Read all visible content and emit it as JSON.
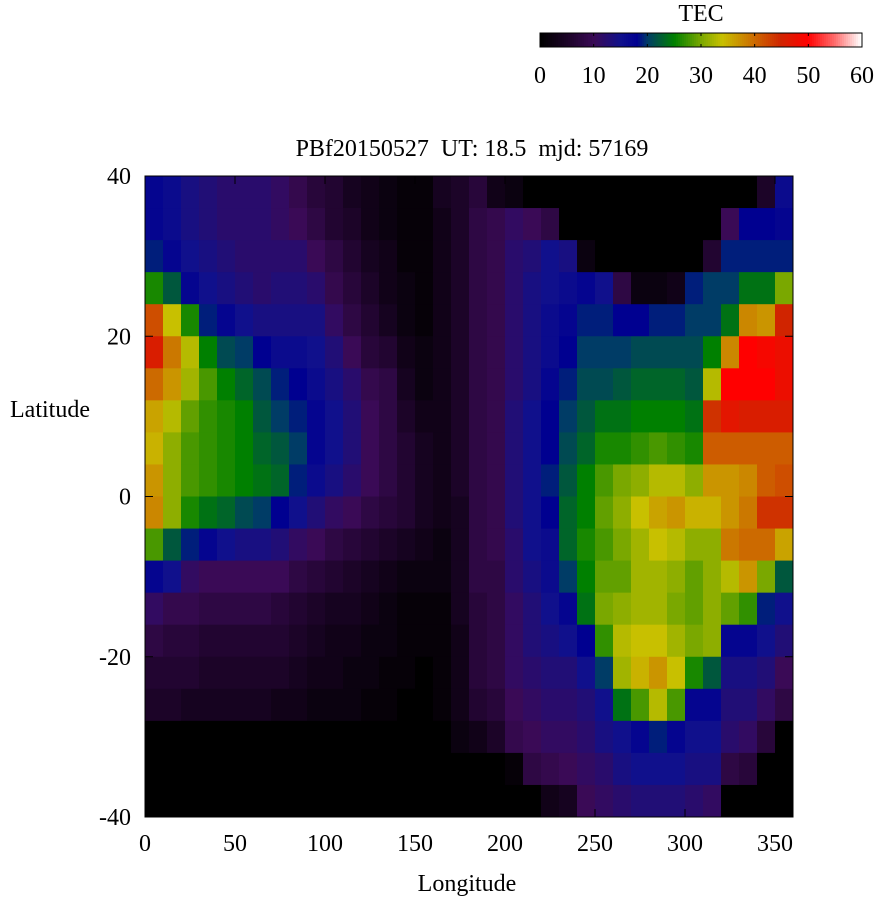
{
  "chart_data": {
    "type": "heatmap",
    "title": "PBf20150527  UT: 18.5  mjd: 57169",
    "xlabel": "Longitude",
    "ylabel": "Latitude",
    "xlim": [
      0,
      360
    ],
    "ylim": [
      -40,
      40
    ],
    "xticks": [
      "0",
      "50",
      "100",
      "150",
      "200",
      "250",
      "300",
      "350"
    ],
    "yticks": [
      "-40",
      "-20",
      "0",
      "20",
      "40"
    ],
    "lon_bin_edges_start": [
      0,
      10,
      20,
      30,
      40,
      50,
      60,
      70,
      80,
      90,
      100,
      110,
      120,
      130,
      140,
      150,
      160,
      170,
      180,
      190,
      200,
      210,
      220,
      230,
      240,
      250,
      260,
      270,
      280,
      290,
      300,
      310,
      320,
      330,
      340,
      350
    ],
    "lat_bin_tops": [
      40,
      36,
      32,
      28,
      24,
      20,
      16,
      12,
      8,
      4,
      0,
      -4,
      -8,
      -12,
      -16,
      -20,
      -24,
      -28,
      -32,
      -36
    ],
    "bin_size": {
      "lon": 10,
      "lat": 4
    },
    "z_by_lon": [
      [
        17,
        17,
        19,
        26,
        42,
        46,
        40,
        36,
        35,
        37,
        38,
        28,
        17,
        11,
        8,
        6,
        5,
        0,
        0,
        0
      ],
      [
        16,
        16,
        17,
        22,
        34,
        39,
        37,
        33,
        31,
        31,
        31,
        22,
        15,
        9,
        7,
        6,
        5,
        0,
        0,
        0
      ],
      [
        14,
        14,
        15,
        17,
        26,
        33,
        32,
        29,
        28,
        28,
        26,
        19,
        11,
        9,
        7,
        6,
        4,
        0,
        0,
        0
      ],
      [
        13,
        13,
        14,
        15,
        19,
        25,
        28,
        27,
        27,
        27,
        24,
        17,
        10,
        8,
        6,
        5,
        4,
        0,
        0,
        0
      ],
      [
        12,
        12,
        13,
        14,
        17,
        21,
        25,
        26,
        26,
        26,
        23,
        15,
        10,
        8,
        6,
        5,
        4,
        0,
        0,
        0
      ],
      [
        12,
        12,
        12,
        13,
        15,
        20,
        23,
        25,
        25,
        25,
        21,
        14,
        10,
        8,
        6,
        5,
        4,
        0,
        0,
        0
      ],
      [
        12,
        12,
        12,
        12,
        14,
        18,
        21,
        22,
        23,
        24,
        20,
        14,
        10,
        8,
        6,
        5,
        4,
        0,
        0,
        0
      ],
      [
        11,
        11,
        12,
        13,
        14,
        16,
        19,
        20,
        22,
        23,
        18,
        13,
        10,
        7,
        6,
        5,
        3,
        0,
        0,
        0
      ],
      [
        9,
        10,
        12,
        13,
        14,
        16,
        18,
        19,
        20,
        19,
        15,
        11,
        8,
        6,
        5,
        4,
        3,
        0,
        0,
        0
      ],
      [
        7,
        8,
        10,
        12,
        14,
        15,
        16,
        17,
        17,
        16,
        13,
        10,
        7,
        5,
        4,
        3,
        2,
        0,
        0,
        0
      ],
      [
        6,
        6,
        8,
        9,
        11,
        13,
        14,
        15,
        15,
        14,
        11,
        8,
        6,
        4,
        3,
        3,
        2,
        0,
        0,
        0
      ],
      [
        4,
        5,
        6,
        7,
        8,
        10,
        12,
        13,
        13,
        12,
        10,
        7,
        5,
        4,
        3,
        2,
        2,
        0,
        0,
        0
      ],
      [
        3,
        3,
        4,
        5,
        6,
        7,
        9,
        10,
        10,
        10,
        8,
        6,
        4,
        3,
        2,
        2,
        1,
        0,
        0,
        0
      ],
      [
        2,
        2,
        3,
        3,
        4,
        6,
        8,
        8,
        8,
        8,
        7,
        5,
        3,
        2,
        2,
        1,
        1,
        0,
        0,
        0
      ],
      [
        1,
        1,
        1,
        2,
        2,
        3,
        4,
        5,
        6,
        6,
        6,
        4,
        2,
        1,
        1,
        1,
        0,
        0,
        0,
        0
      ],
      [
        1,
        1,
        1,
        1,
        1,
        2,
        2,
        3,
        4,
        4,
        4,
        3,
        2,
        1,
        1,
        0,
        0,
        0,
        0,
        0
      ],
      [
        4,
        3,
        3,
        3,
        3,
        3,
        3,
        3,
        3,
        3,
        3,
        2,
        2,
        1,
        1,
        1,
        1,
        0,
        0,
        0
      ],
      [
        5,
        5,
        5,
        5,
        5,
        5,
        5,
        5,
        5,
        5,
        4,
        4,
        4,
        4,
        3,
        3,
        3,
        2,
        0,
        0
      ],
      [
        7,
        8,
        8,
        8,
        8,
        8,
        8,
        8,
        8,
        8,
        8,
        8,
        8,
        7,
        7,
        7,
        6,
        3,
        0,
        0
      ],
      [
        3,
        9,
        9,
        9,
        9,
        9,
        9,
        9,
        9,
        9,
        9,
        9,
        8,
        8,
        8,
        8,
        7,
        5,
        0,
        0
      ],
      [
        2,
        11,
        12,
        12,
        12,
        12,
        12,
        13,
        13,
        13,
        13,
        12,
        12,
        11,
        11,
        11,
        10,
        9,
        1,
        0
      ],
      [
        0,
        10,
        13,
        14,
        14,
        14,
        14,
        15,
        15,
        15,
        15,
        15,
        14,
        13,
        13,
        12,
        11,
        10,
        8,
        0
      ],
      [
        0,
        8,
        15,
        15,
        16,
        16,
        17,
        18,
        18,
        19,
        18,
        16,
        16,
        15,
        14,
        13,
        12,
        11,
        9,
        3
      ],
      [
        0,
        0,
        14,
        16,
        17,
        18,
        19,
        20,
        21,
        22,
        23,
        23,
        20,
        17,
        15,
        13,
        12,
        11,
        10,
        4
      ],
      [
        0,
        0,
        2,
        17,
        19,
        20,
        21,
        22,
        23,
        25,
        25,
        26,
        25,
        24,
        18,
        15,
        13,
        12,
        11,
        10
      ],
      [
        0,
        0,
        0,
        15,
        19,
        20,
        21,
        24,
        26,
        28,
        29,
        28,
        29,
        30,
        27,
        20,
        15,
        14,
        12,
        11
      ],
      [
        0,
        0,
        0,
        8,
        18,
        20,
        22,
        24,
        26,
        30,
        31,
        30,
        29,
        31,
        33,
        32,
        24,
        15,
        14,
        12
      ],
      [
        0,
        0,
        0,
        2,
        18,
        21,
        23,
        25,
        27,
        31,
        34,
        32,
        32,
        32,
        34,
        35,
        28,
        17,
        15,
        13
      ],
      [
        0,
        0,
        0,
        2,
        19,
        21,
        23,
        25,
        28,
        33,
        36,
        34,
        32,
        32,
        34,
        37,
        33,
        19,
        15,
        13
      ],
      [
        0,
        0,
        0,
        3,
        19,
        21,
        23,
        25,
        27,
        33,
        37,
        33,
        31,
        30,
        32,
        34,
        28,
        17,
        15,
        13
      ],
      [
        0,
        0,
        0,
        19,
        20,
        21,
        22,
        24,
        26,
        31,
        35,
        31,
        29,
        29,
        30,
        26,
        17,
        15,
        14,
        12
      ],
      [
        0,
        0,
        6,
        20,
        20,
        25,
        33,
        44,
        41,
        37,
        35,
        31,
        31,
        31,
        31,
        22,
        17,
        15,
        14,
        11
      ],
      [
        0,
        10,
        19,
        20,
        24,
        38,
        50,
        47,
        41,
        37,
        37,
        39,
        33,
        29,
        17,
        14,
        13,
        12,
        8,
        0
      ],
      [
        0,
        18,
        19,
        24,
        38,
        50,
        50,
        46,
        41,
        38,
        39,
        40,
        37,
        27,
        17,
        14,
        13,
        11,
        7,
        0
      ],
      [
        5,
        18,
        19,
        24,
        37,
        49,
        50,
        46,
        41,
        41,
        44,
        40,
        30,
        19,
        15,
        13,
        11,
        7,
        0,
        0
      ],
      [
        16,
        17,
        19,
        30,
        45,
        48,
        48,
        46,
        41,
        42,
        44,
        36,
        22,
        15,
        13,
        10,
        8,
        0,
        0,
        0
      ]
    ],
    "colorbar": {
      "title": "TEC",
      "range": [
        0,
        60
      ],
      "ticks": [
        "0",
        "10",
        "20",
        "30",
        "40",
        "50",
        "60"
      ],
      "stops": [
        [
          0,
          "#000000"
        ],
        [
          5,
          "#1c0428"
        ],
        [
          10,
          "#3a0a56"
        ],
        [
          15,
          "#10108c"
        ],
        [
          18,
          "#000090"
        ],
        [
          20,
          "#003c66"
        ],
        [
          25,
          "#008000"
        ],
        [
          30,
          "#7aa800"
        ],
        [
          34,
          "#c8c000"
        ],
        [
          40,
          "#cc6a00"
        ],
        [
          45,
          "#d02400"
        ],
        [
          50,
          "#ff0000"
        ],
        [
          55,
          "#ff6a6a"
        ],
        [
          60,
          "#ffffff"
        ]
      ]
    }
  }
}
